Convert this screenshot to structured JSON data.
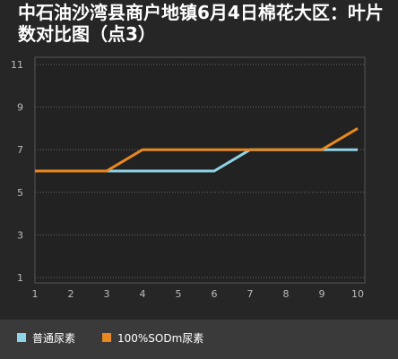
{
  "title": "中石油沙湾县商户地镇6月4日棉花大区：叶片数对比图（点3）",
  "chart_data": {
    "type": "line",
    "title": "中石油沙湾县商户地镇6月4日棉花大区：叶片数对比图（点3）",
    "x": [
      1,
      2,
      3,
      4,
      5,
      6,
      7,
      8,
      9,
      10
    ],
    "xticks": [
      "1",
      "2",
      "3",
      "4",
      "5",
      "6",
      "7",
      "8",
      "9",
      "10"
    ],
    "yticks": [
      "1",
      "3",
      "5",
      "7",
      "9",
      "11"
    ],
    "ylim": [
      1,
      11
    ],
    "xlim": [
      1,
      10
    ],
    "grid": "horizontal dotted",
    "legend_position": "bottom",
    "series": [
      {
        "name": "普通尿素",
        "color": "#8fd3e6",
        "values": [
          6,
          6,
          6,
          6,
          6,
          6,
          7,
          7,
          7,
          7
        ]
      },
      {
        "name": "100%SODm尿素",
        "color": "#e8881e",
        "values": [
          6,
          6,
          6,
          7,
          7,
          7,
          7,
          7,
          7,
          8
        ]
      }
    ]
  }
}
